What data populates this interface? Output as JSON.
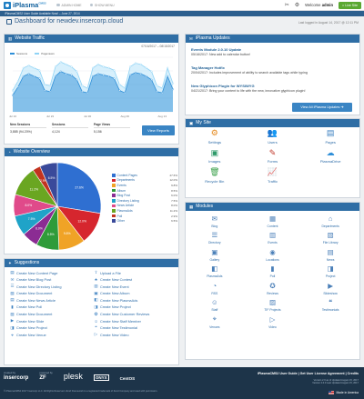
{
  "brand": {
    "name": "iPlasma",
    "sup": "CMS2"
  },
  "topnav": [
    {
      "label": "ADMIN HOME"
    },
    {
      "label": "SHOW MENU"
    }
  ],
  "user": {
    "welcome": "Welcome",
    "name": "admin",
    "live_button": "Live Site"
  },
  "notice": "iPlasmaCMS2 User Guide Available Now! – June 27, 2014",
  "header": {
    "title": "Dashboard for newdev.insercorp.cloud",
    "last_login": "Last logged in August 14, 2017 @ 12:11 PM"
  },
  "traffic": {
    "title": "Website Traffic",
    "date_range": "07/16/2017 – 08/15/2017",
    "legend": [
      "Sessions",
      "Pageviews"
    ],
    "x_ticks": [
      "Jul 16",
      "Jul 23",
      "Jul 30",
      "Aug 06",
      "Aug 13"
    ],
    "stats": [
      {
        "label": "New Sessions",
        "value": "3,885 (94.20%)"
      },
      {
        "label": "Sessions",
        "value": "4,124"
      },
      {
        "label": "Page Views",
        "value": "5,156"
      }
    ],
    "button": "View Reports",
    "colors": {
      "sessions": "#2f8fd8",
      "pageviews": "#8fd3f5"
    }
  },
  "chart_data": [
    {
      "type": "area",
      "x": [
        "Jul 16",
        "Jul 17",
        "Jul 18",
        "Jul 19",
        "Jul 20",
        "Jul 21",
        "Jul 22",
        "Jul 23",
        "Jul 24",
        "Jul 25",
        "Jul 26",
        "Jul 27",
        "Jul 28",
        "Jul 29",
        "Jul 30",
        "Jul 31",
        "Aug 01",
        "Aug 02",
        "Aug 03",
        "Aug 04",
        "Aug 05",
        "Aug 06",
        "Aug 07",
        "Aug 08",
        "Aug 09",
        "Aug 10",
        "Aug 11",
        "Aug 12",
        "Aug 13",
        "Aug 14",
        "Aug 15"
      ],
      "series": [
        {
          "name": "Sessions",
          "values": [
            70,
            105,
            150,
            160,
            150,
            140,
            90,
            85,
            150,
            170,
            160,
            155,
            135,
            85,
            80,
            150,
            160,
            155,
            150,
            140,
            90,
            80,
            155,
            165,
            160,
            150,
            135,
            85,
            80,
            150,
            95
          ]
        },
        {
          "name": "Pageviews",
          "values": [
            90,
            130,
            185,
            195,
            185,
            175,
            115,
            110,
            190,
            210,
            200,
            190,
            170,
            110,
            100,
            185,
            200,
            190,
            185,
            175,
            115,
            100,
            190,
            205,
            200,
            185,
            170,
            110,
            100,
            185,
            120
          ]
        }
      ],
      "xlabel": "",
      "ylabel": "",
      "ylim": [
        0,
        230
      ],
      "grid": true,
      "legend": "top-left"
    },
    {
      "type": "pie",
      "categories": [
        "Content Pages",
        "Departments",
        "Events",
        "Album",
        "Blog Post",
        "Directory Listing",
        "News Article",
        "PlasmaAds",
        "Poll",
        "Other"
      ],
      "values": [
        27.6,
        12.0,
        9.8,
        8.5,
        6.0,
        7.5,
        8.0,
        11.2,
        2.9,
        6.5
      ],
      "labels": [
        "27.6%",
        "12.0%",
        "9.8%",
        "8.5%",
        "6.0%",
        "7.5%",
        "8.0%",
        "11.2%",
        "2.9%",
        "6.5%"
      ],
      "colors": [
        "#2f6fd1",
        "#d6262e",
        "#f0a326",
        "#2f9b3a",
        "#8b2c93",
        "#1fa3c8",
        "#e04a8a",
        "#6aa621",
        "#c2331f",
        "#3a4a9a"
      ],
      "title": "",
      "legend": "right"
    }
  ],
  "overview": {
    "title": "Website Overview"
  },
  "updates": {
    "title": "iPlasma Updates",
    "items": [
      {
        "title": "Events Module 2.0.10 Update",
        "desc": "05/16/2017: New add to calendar button!"
      },
      {
        "title": "Tag Manager Hotfix",
        "desc": "20/04/2017: Includes improvement of ability to search available tags while typing"
      },
      {
        "title": "New Glyphicon Plugin for WYSIWYG",
        "desc": "04/21/2017: Bring your content to life with the new, innovative glyphicon plugin!"
      }
    ],
    "button": "View All iPlasma Updates"
  },
  "mysite": {
    "title": "My Site",
    "items": [
      {
        "label": "Settings",
        "icon": "gear-icon",
        "glyph": "⚙",
        "color": "#e58a1f"
      },
      {
        "label": "Users",
        "icon": "users-icon",
        "glyph": "👥",
        "color": "#d14a3a"
      },
      {
        "label": "Pages",
        "icon": "pages-icon",
        "glyph": "▤",
        "color": "#3a7fc0"
      },
      {
        "label": "Images",
        "icon": "images-icon",
        "glyph": "▣",
        "color": "#2e9a6a"
      },
      {
        "label": "Forms",
        "icon": "forms-icon",
        "glyph": "✎",
        "color": "#c0392b"
      },
      {
        "label": "PlasmaDrive",
        "icon": "drive-icon",
        "glyph": "☁",
        "color": "#2f8fd8"
      },
      {
        "label": "Recycle Bin",
        "icon": "recycle-bin-icon",
        "glyph": "🗑",
        "color": "#3aa04a"
      },
      {
        "label": "Traffic",
        "icon": "traffic-icon",
        "glyph": "📈",
        "color": "#3a7fc0"
      }
    ]
  },
  "modules": {
    "title": "Modules",
    "items": [
      {
        "label": "Blog",
        "icon": "blog-icon",
        "glyph": "✉"
      },
      {
        "label": "Content",
        "icon": "content-icon",
        "glyph": "▦"
      },
      {
        "label": "Departments",
        "icon": "departments-icon",
        "glyph": "⌂"
      },
      {
        "label": "Directory",
        "icon": "directory-icon",
        "glyph": "☰"
      },
      {
        "label": "Events",
        "icon": "events-icon",
        "glyph": "▥"
      },
      {
        "label": "File Library",
        "icon": "file-library-icon",
        "glyph": "▧"
      },
      {
        "label": "Gallery",
        "icon": "gallery-icon",
        "glyph": "▣"
      },
      {
        "label": "Locations",
        "icon": "locations-icon",
        "glyph": "◉"
      },
      {
        "label": "News",
        "icon": "news-icon",
        "glyph": "▤"
      },
      {
        "label": "PlasmaAds",
        "icon": "plasma-ads-icon",
        "glyph": "◧"
      },
      {
        "label": "Poll",
        "icon": "poll-icon",
        "glyph": "▮"
      },
      {
        "label": "Project",
        "icon": "project-icon",
        "glyph": "◨"
      },
      {
        "label": "RSS",
        "icon": "rss-icon",
        "glyph": "◔"
      },
      {
        "label": "Reviews",
        "icon": "reviews-icon",
        "glyph": "✪"
      },
      {
        "label": "Slideshow",
        "icon": "slideshow-icon",
        "glyph": "▶"
      },
      {
        "label": "Staff",
        "icon": "staff-icon",
        "glyph": "☺"
      },
      {
        "label": "TIF Projects",
        "icon": "tif-projects-icon",
        "glyph": "▨"
      },
      {
        "label": "Testimonials",
        "icon": "testimonials-icon",
        "glyph": "❝"
      },
      {
        "label": "Venues",
        "icon": "venues-icon",
        "glyph": "⌖"
      },
      {
        "label": "Video",
        "icon": "video-icon",
        "glyph": "▷"
      }
    ]
  },
  "suggestions": {
    "title": "Suggestions",
    "items": [
      {
        "label": "Create New Content Page",
        "icon": "page-icon",
        "glyph": "▤"
      },
      {
        "label": "Upload a File",
        "icon": "upload-icon",
        "glyph": "⇪"
      },
      {
        "label": "Create New Blog Post",
        "icon": "blog-icon",
        "glyph": "✉"
      },
      {
        "label": "Create New Contest",
        "icon": "contest-icon",
        "glyph": "★"
      },
      {
        "label": "Create New Directory Listing",
        "icon": "directory-icon",
        "glyph": "☰"
      },
      {
        "label": "Create New Event",
        "icon": "event-icon",
        "glyph": "▥"
      },
      {
        "label": "Create New Document",
        "icon": "document-icon",
        "glyph": "▧"
      },
      {
        "label": "Create New Album",
        "icon": "album-icon",
        "glyph": "▣"
      },
      {
        "label": "Create New News Article",
        "icon": "news-icon",
        "glyph": "▤"
      },
      {
        "label": "Create New PlasmaAds",
        "icon": "ads-icon",
        "glyph": "◧"
      },
      {
        "label": "Create New Poll",
        "icon": "poll-icon",
        "glyph": "▮"
      },
      {
        "label": "Create New Project",
        "icon": "project-icon",
        "glyph": "◨"
      },
      {
        "label": "Create New Document",
        "icon": "document-icon",
        "glyph": "▧"
      },
      {
        "label": "Create New Customer Reviews",
        "icon": "reviews-icon",
        "glyph": "✪"
      },
      {
        "label": "Create New Slide",
        "icon": "slide-icon",
        "glyph": "▶"
      },
      {
        "label": "Create New Staff Member",
        "icon": "staff-icon",
        "glyph": "☺"
      },
      {
        "label": "Create New Project",
        "icon": "project-icon",
        "glyph": "◨"
      },
      {
        "label": "Create New Testimonial",
        "icon": "testimonial-icon",
        "glyph": "❝"
      },
      {
        "label": "Create New Venue",
        "icon": "venue-icon",
        "glyph": "⌖"
      },
      {
        "label": "Create New Video",
        "icon": "video-icon",
        "glyph": "▷"
      }
    ]
  },
  "footer": {
    "created_by": "created by",
    "created_name": "insercorp",
    "powered_by": "powered by",
    "powered_name": "ZF",
    "plesk": "plesk",
    "onyx": "ONYX",
    "centos": "CentOS",
    "links": "iPlasmaCMS2 User Guide | Get User License Agreement | Credits",
    "version_1": "Version 2.0 as of Updated August 15, 2017",
    "version_2": "Version 2.0.0 Last Updated August 15, 2017",
    "copyright": "© iPlasmaCMS2 2017 Insercorp LLC. All Rights Reserved. Zend Framework is a registered trademark of Zend Company and used with permission.",
    "made_in": "Made in America"
  }
}
